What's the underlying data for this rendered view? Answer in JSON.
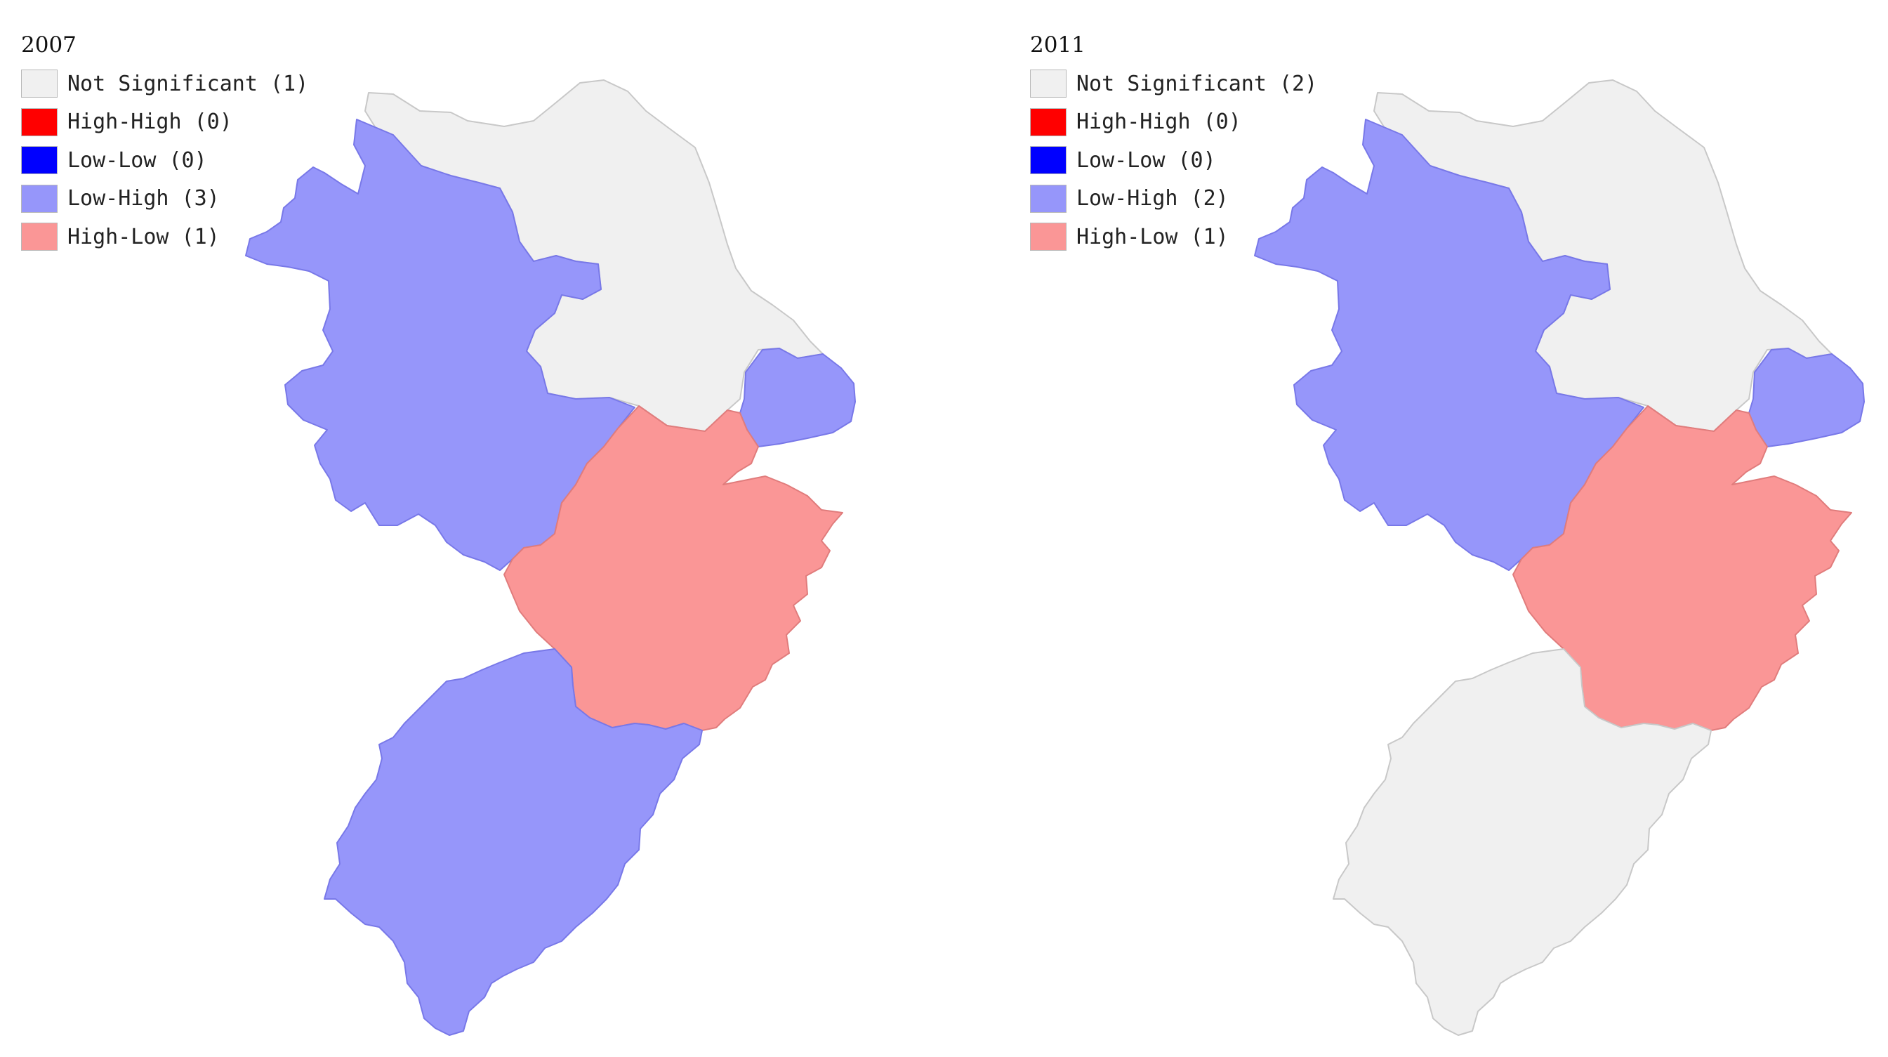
{
  "colors": {
    "not_significant": "#f0f0f0",
    "high_high": "#ff0000",
    "low_low": "#0000ff",
    "low_high": "#9696fa",
    "high_low": "#fa9696",
    "border_light": "#c8c8c8",
    "border_blue": "#7878e8",
    "border_red": "#e07c7c"
  },
  "maps": [
    {
      "title": "2007",
      "legend": [
        {
          "label": "Not Significant (1)",
          "color": "#f0f0f0"
        },
        {
          "label": "High-High (0)",
          "color": "#ff0000"
        },
        {
          "label": "Low-Low (0)",
          "color": "#0000ff"
        },
        {
          "label": "Low-High (3)",
          "color": "#9696fa"
        },
        {
          "label": "High-Low (1)",
          "color": "#fa9696"
        }
      ],
      "regions": {
        "north": "Not Significant",
        "west": "Low-High",
        "east": "Low-High",
        "center": "High-Low",
        "south": "Low-High"
      }
    },
    {
      "title": "2011",
      "legend": [
        {
          "label": "Not Significant (2)",
          "color": "#f0f0f0"
        },
        {
          "label": "High-High (0)",
          "color": "#ff0000"
        },
        {
          "label": "Low-Low (0)",
          "color": "#0000ff"
        },
        {
          "label": "Low-High (2)",
          "color": "#9696fa"
        },
        {
          "label": "High-Low (1)",
          "color": "#fa9696"
        }
      ],
      "regions": {
        "north": "Not Significant",
        "west": "Low-High",
        "east": "Low-High",
        "center": "High-Low",
        "south": "Not Significant"
      }
    }
  ]
}
